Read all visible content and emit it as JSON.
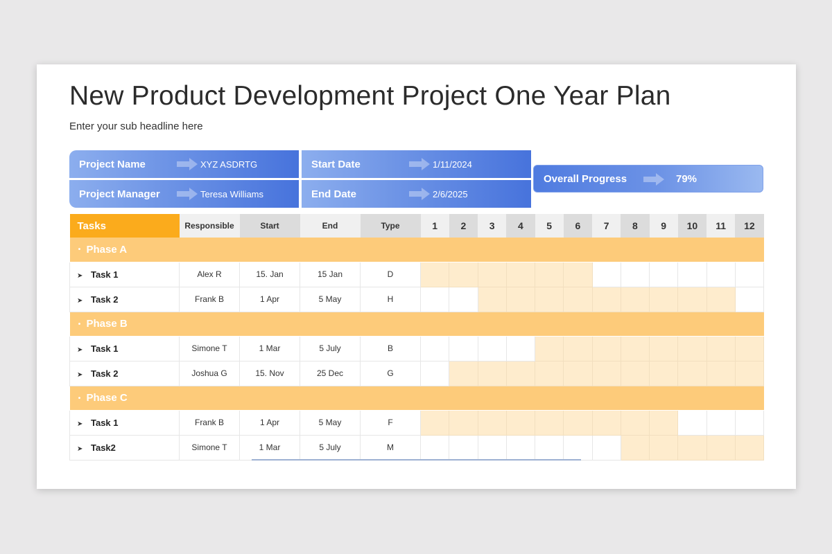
{
  "title": "New Product Development Project One Year Plan",
  "subtitle": "Enter your sub headline here",
  "info": {
    "project_name_label": "Project Name",
    "project_name_value": "XYZ  ASDRTG",
    "project_manager_label": "Project Manager",
    "project_manager_value": "Teresa Williams",
    "start_date_label": "Start Date",
    "start_date_value": "1/11/2024",
    "end_date_label": "End Date",
    "end_date_value": "2/6/2025",
    "overall_progress_label": "Overall Progress",
    "overall_progress_value": "79%"
  },
  "table": {
    "headers": {
      "tasks": "Tasks",
      "responsible": "Responsible",
      "start": "Start",
      "end": "End",
      "type": "Type"
    },
    "months": [
      "1",
      "2",
      "3",
      "4",
      "5",
      "6",
      "7",
      "8",
      "9",
      "10",
      "11",
      "12"
    ],
    "phases": [
      {
        "name": "Phase A",
        "tasks": [
          {
            "name": "Task 1",
            "responsible": "Alex R",
            "start": "15. Jan",
            "end": "15 Jan",
            "type": "D",
            "from_month": 1,
            "to_month": 6
          },
          {
            "name": "Task 2",
            "responsible": "Frank B",
            "start": "1 Apr",
            "end": "5 May",
            "type": "H",
            "from_month": 3,
            "to_month": 11
          }
        ]
      },
      {
        "name": "Phase B",
        "tasks": [
          {
            "name": "Task 1",
            "responsible": "Simone T",
            "start": "1 Mar",
            "end": "5 July",
            "type": "B",
            "from_month": 5,
            "to_month": 12
          },
          {
            "name": "Task 2",
            "responsible": "Joshua G",
            "start": "15. Nov",
            "end": "25 Dec",
            "type": "G",
            "from_month": 2,
            "to_month": 12
          }
        ]
      },
      {
        "name": "Phase C",
        "tasks": [
          {
            "name": "Task 1",
            "responsible": "Frank B",
            "start": "1 Apr",
            "end": "5 May",
            "type": "F",
            "from_month": 1,
            "to_month": 9
          },
          {
            "name": "Task2",
            "responsible": "Simone T",
            "start": "1 Mar",
            "end": "5 July",
            "type": "M",
            "from_month": 8,
            "to_month": 12
          }
        ]
      }
    ]
  },
  "colors": {
    "tasks_header": "#fbab1c",
    "phase_row": "#fdcb7a",
    "gantt_bar": "#feeccd",
    "info_blue": "#4773dc"
  },
  "icons": {
    "arrow": "arrow-right-icon",
    "phase_bullet": "bullet-icon",
    "task_bullet": "chevron-right-icon"
  }
}
